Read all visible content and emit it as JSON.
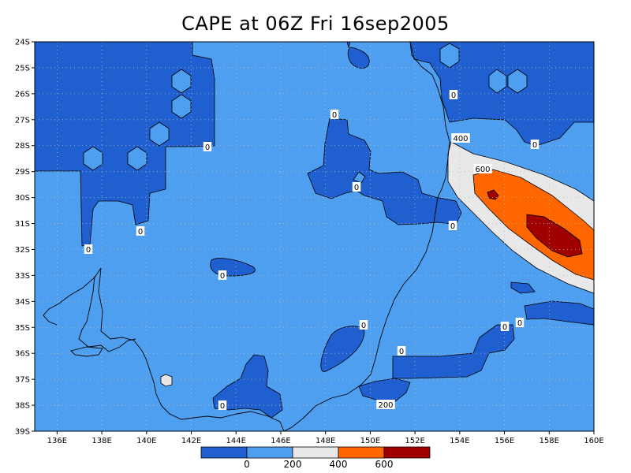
{
  "title": "CAPE at 06Z Fri 16sep2005",
  "map": {
    "lon_range": [
      135,
      160
    ],
    "lat_range": [
      -39,
      -24
    ],
    "lat_labels": [
      "24S",
      "25S",
      "26S",
      "27S",
      "28S",
      "29S",
      "30S",
      "31S",
      "32S",
      "33S",
      "34S",
      "35S",
      "36S",
      "37S",
      "38S",
      "39S"
    ],
    "lon_labels": [
      "136E",
      "138E",
      "140E",
      "142E",
      "144E",
      "146E",
      "148E",
      "150E",
      "152E",
      "154E",
      "156E",
      "158E",
      "160E"
    ],
    "contour_labels": [
      "0",
      "0",
      "0",
      "0",
      "0",
      "0",
      "0",
      "0",
      "0",
      "0",
      "0",
      "0",
      "0",
      "0",
      "200",
      "400",
      "600"
    ]
  },
  "legend": {
    "labels": [
      "0",
      "200",
      "400",
      "600"
    ],
    "colors": [
      "#1f5fcf",
      "#4f9ff0",
      "#e8e8e8",
      "#ff6600",
      "#a00000"
    ]
  },
  "colors": {
    "cape_lt0": "#1f5fcf",
    "cape_0_200": "#4f9ff0",
    "cape_200_400": "#e8e8e8",
    "cape_400_600": "#ff6600",
    "cape_gt600": "#a00000"
  }
}
